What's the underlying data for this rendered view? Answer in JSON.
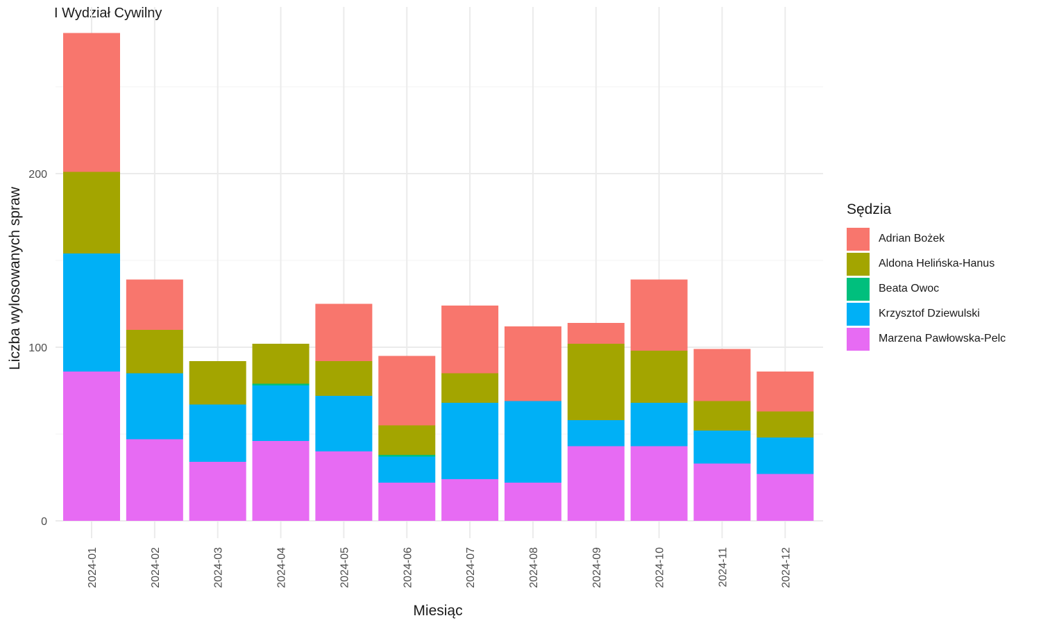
{
  "chart_data": {
    "type": "bar",
    "stacked": true,
    "title": "I Wydział Cywilny",
    "xlabel": "Miesiąc",
    "ylabel": "Liczba wylosowanych spraw",
    "ylim": [
      0,
      290
    ],
    "yticks": [
      0,
      100,
      200
    ],
    "grid": true,
    "legend_title": "Sędzia",
    "legend_position": "right",
    "categories": [
      "2024-01",
      "2024-02",
      "2024-03",
      "2024-04",
      "2024-05",
      "2024-06",
      "2024-07",
      "2024-08",
      "2024-09",
      "2024-10",
      "2024-11",
      "2024-12"
    ],
    "series": [
      {
        "name": "Adrian Bożek",
        "color": "#F8766D",
        "values": [
          80,
          29,
          0,
          0,
          33,
          40,
          39,
          43,
          12,
          41,
          30,
          23
        ]
      },
      {
        "name": "Aldona Helińska-Hanus",
        "color": "#A3A500",
        "values": [
          47,
          25,
          25,
          23,
          20,
          17,
          17,
          0,
          44,
          30,
          17,
          15
        ]
      },
      {
        "name": "Beata Owoc",
        "color": "#00BF7D",
        "values": [
          0,
          0,
          0,
          1,
          0,
          1,
          0,
          0,
          0,
          0,
          0,
          0
        ]
      },
      {
        "name": "Krzysztof Dziewulski",
        "color": "#00B0F6",
        "values": [
          68,
          38,
          33,
          32,
          32,
          15,
          44,
          47,
          15,
          25,
          19,
          21
        ]
      },
      {
        "name": "Marzena Pawłowska-Pelc",
        "color": "#E76BF3",
        "values": [
          86,
          47,
          34,
          46,
          40,
          22,
          24,
          22,
          43,
          43,
          33,
          27
        ]
      }
    ]
  }
}
